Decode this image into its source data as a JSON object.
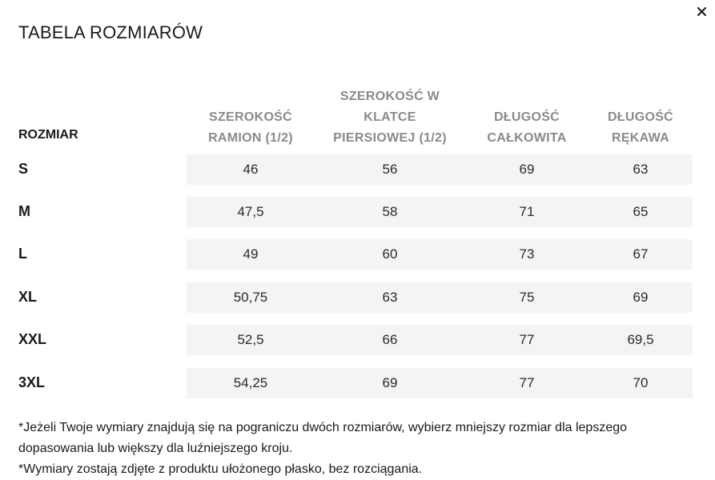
{
  "dialog": {
    "title": "TABELA ROZMIARÓW",
    "close_label": "×"
  },
  "table": {
    "first_header": "ROZMIAR",
    "columns": [
      "SZEROKOŚĆ RAMION (1/2)",
      "SZEROKOŚĆ W KLATCE PIERSIOWEJ (1/2)",
      "DŁUGOŚĆ CAŁKOWITA",
      "DŁUGOŚĆ RĘKAWA"
    ],
    "rows": [
      {
        "size": "S",
        "values": [
          "46",
          "56",
          "69",
          "63"
        ]
      },
      {
        "size": "M",
        "values": [
          "47,5",
          "58",
          "71",
          "65"
        ]
      },
      {
        "size": "L",
        "values": [
          "49",
          "60",
          "73",
          "67"
        ]
      },
      {
        "size": "XL",
        "values": [
          "50,75",
          "63",
          "75",
          "69"
        ]
      },
      {
        "size": "XXL",
        "values": [
          "52,5",
          "66",
          "77",
          "69,5"
        ]
      },
      {
        "size": "3XL",
        "values": [
          "54,25",
          "69",
          "77",
          "70"
        ]
      }
    ]
  },
  "notes": [
    "*Jeżeli Twoje wymiary znajdują się na pograniczu dwóch rozmiarów, wybierz mniejszy rozmiar dla lepszego dopasowania lub większy dla luźniejszego kroju.",
    "*Wymiary zostają zdjęte z produktu ułożonego płasko, bez rozciągania."
  ]
}
